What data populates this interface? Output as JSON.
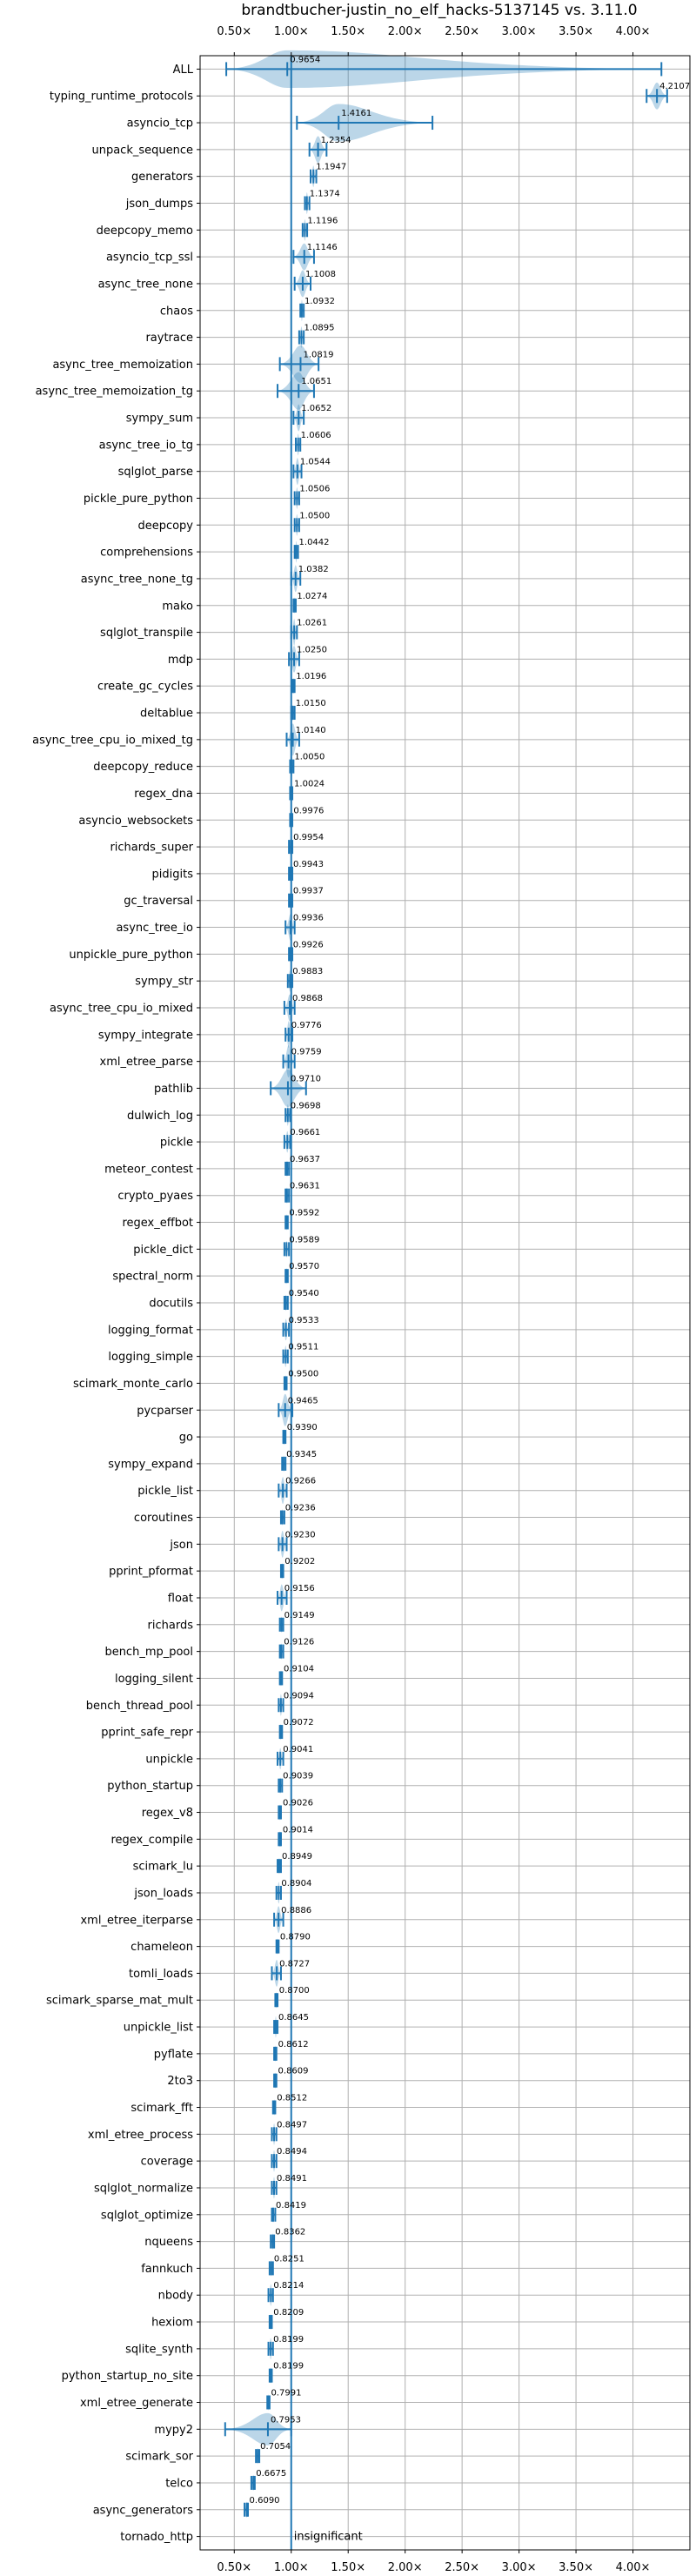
{
  "chart_data": {
    "type": "violin",
    "title": "brandtbucher-justin_no_elf_hacks-5137145 vs. 3.11.0",
    "x_ticks": [
      {
        "value": 0.5,
        "label": "0.50×"
      },
      {
        "value": 1.0,
        "label": "1.00×"
      },
      {
        "value": 1.5,
        "label": "1.50×"
      },
      {
        "value": 2.0,
        "label": "2.00×"
      },
      {
        "value": 2.5,
        "label": "2.50×"
      },
      {
        "value": 3.0,
        "label": "3.00×"
      },
      {
        "value": 3.5,
        "label": "3.50×"
      },
      {
        "value": 4.0,
        "label": "4.00×"
      }
    ],
    "xlim": [
      0.2,
      4.5
    ],
    "grid": true,
    "reference_line": 1.0,
    "benchmarks": [
      {
        "name": "ALL",
        "value": 0.9654,
        "label": "0.9654",
        "lo": 0.43,
        "hi": 4.25,
        "violin_w": 0.7
      },
      {
        "name": "typing_runtime_protocols",
        "value": 4.2107,
        "label": "4.2107",
        "lo": 4.12,
        "hi": 4.3,
        "violin_w": 0.5
      },
      {
        "name": "asyncio_tcp",
        "value": 1.4161,
        "label": "1.4161",
        "lo": 1.05,
        "hi": 2.24,
        "violin_w": 0.7
      },
      {
        "name": "unpack_sequence",
        "value": 1.2354,
        "label": "1.2354",
        "lo": 1.16,
        "hi": 1.31,
        "violin_w": 0.5
      },
      {
        "name": "generators",
        "value": 1.1947,
        "label": "1.1947",
        "lo": 1.17,
        "hi": 1.22,
        "violin_w": 0.4
      },
      {
        "name": "json_dumps",
        "value": 1.1374,
        "label": "1.1374",
        "lo": 1.12,
        "hi": 1.16,
        "violin_w": 0.4
      },
      {
        "name": "deepcopy_memo",
        "value": 1.1196,
        "label": "1.1196",
        "lo": 1.1,
        "hi": 1.14,
        "violin_w": 0.4
      },
      {
        "name": "asyncio_tcp_ssl",
        "value": 1.1146,
        "label": "1.1146",
        "lo": 1.02,
        "hi": 1.2,
        "violin_w": 0.5
      },
      {
        "name": "async_tree_none",
        "value": 1.1008,
        "label": "1.1008",
        "lo": 1.03,
        "hi": 1.17,
        "violin_w": 0.5
      },
      {
        "name": "chaos",
        "value": 1.0932,
        "label": "1.0932",
        "lo": 1.08,
        "hi": 1.11,
        "violin_w": 0.4
      },
      {
        "name": "raytrace",
        "value": 1.0895,
        "label": "1.0895",
        "lo": 1.07,
        "hi": 1.11,
        "violin_w": 0.4
      },
      {
        "name": "async_tree_memoization",
        "value": 1.0819,
        "label": "1.0819",
        "lo": 0.9,
        "hi": 1.24,
        "violin_w": 0.7
      },
      {
        "name": "async_tree_memoization_tg",
        "value": 1.0651,
        "label": "1.0651",
        "lo": 0.88,
        "hi": 1.2,
        "violin_w": 0.7
      },
      {
        "name": "sympy_sum",
        "value": 1.0652,
        "label": "1.0652",
        "lo": 1.02,
        "hi": 1.11,
        "violin_w": 0.5
      },
      {
        "name": "async_tree_io_tg",
        "value": 1.0606,
        "label": "1.0606",
        "lo": 1.04,
        "hi": 1.08,
        "violin_w": 0.4
      },
      {
        "name": "sqlglot_parse",
        "value": 1.0544,
        "label": "1.0544",
        "lo": 1.02,
        "hi": 1.09,
        "violin_w": 0.5
      },
      {
        "name": "pickle_pure_python",
        "value": 1.0506,
        "label": "1.0506",
        "lo": 1.03,
        "hi": 1.07,
        "violin_w": 0.4
      },
      {
        "name": "deepcopy",
        "value": 1.05,
        "label": "1.0500",
        "lo": 1.03,
        "hi": 1.07,
        "violin_w": 0.4
      },
      {
        "name": "comprehensions",
        "value": 1.0442,
        "label": "1.0442",
        "lo": 1.03,
        "hi": 1.06,
        "violin_w": 0.4
      },
      {
        "name": "async_tree_none_tg",
        "value": 1.0382,
        "label": "1.0382",
        "lo": 1.0,
        "hi": 1.08,
        "violin_w": 0.5
      },
      {
        "name": "mako",
        "value": 1.0274,
        "label": "1.0274",
        "lo": 1.02,
        "hi": 1.04,
        "violin_w": 0.3
      },
      {
        "name": "sqlglot_transpile",
        "value": 1.0261,
        "label": "1.0261",
        "lo": 1.0,
        "hi": 1.05,
        "violin_w": 0.5
      },
      {
        "name": "mdp",
        "value": 1.025,
        "label": "1.0250",
        "lo": 0.98,
        "hi": 1.07,
        "violin_w": 0.5
      },
      {
        "name": "create_gc_cycles",
        "value": 1.0196,
        "label": "1.0196",
        "lo": 1.01,
        "hi": 1.03,
        "violin_w": 0.3
      },
      {
        "name": "deltablue",
        "value": 1.015,
        "label": "1.0150",
        "lo": 1.0,
        "hi": 1.03,
        "violin_w": 0.3
      },
      {
        "name": "async_tree_cpu_io_mixed_tg",
        "value": 1.014,
        "label": "1.0140",
        "lo": 0.96,
        "hi": 1.07,
        "violin_w": 0.6
      },
      {
        "name": "deepcopy_reduce",
        "value": 1.005,
        "label": "1.0050",
        "lo": 0.99,
        "hi": 1.02,
        "violin_w": 0.4
      },
      {
        "name": "regex_dna",
        "value": 1.0024,
        "label": "1.0024",
        "lo": 0.99,
        "hi": 1.01,
        "violin_w": 0.3
      },
      {
        "name": "asyncio_websockets",
        "value": 0.9976,
        "label": "0.9976",
        "lo": 0.99,
        "hi": 1.01,
        "violin_w": 0.3
      },
      {
        "name": "richards_super",
        "value": 0.9954,
        "label": "0.9954",
        "lo": 0.98,
        "hi": 1.01,
        "violin_w": 0.3
      },
      {
        "name": "pidigits",
        "value": 0.9943,
        "label": "0.9943",
        "lo": 0.98,
        "hi": 1.01,
        "violin_w": 0.3
      },
      {
        "name": "gc_traversal",
        "value": 0.9937,
        "label": "0.9937",
        "lo": 0.98,
        "hi": 1.01,
        "violin_w": 0.3
      },
      {
        "name": "async_tree_io",
        "value": 0.9936,
        "label": "0.9936",
        "lo": 0.95,
        "hi": 1.03,
        "violin_w": 0.5
      },
      {
        "name": "unpickle_pure_python",
        "value": 0.9926,
        "label": "0.9926",
        "lo": 0.98,
        "hi": 1.01,
        "violin_w": 0.3
      },
      {
        "name": "sympy_str",
        "value": 0.9883,
        "label": "0.9883",
        "lo": 0.97,
        "hi": 1.01,
        "violin_w": 0.4
      },
      {
        "name": "async_tree_cpu_io_mixed",
        "value": 0.9868,
        "label": "0.9868",
        "lo": 0.94,
        "hi": 1.03,
        "violin_w": 0.5
      },
      {
        "name": "sympy_integrate",
        "value": 0.9776,
        "label": "0.9776",
        "lo": 0.95,
        "hi": 1.01,
        "violin_w": 0.5
      },
      {
        "name": "xml_etree_parse",
        "value": 0.9759,
        "label": "0.9759",
        "lo": 0.93,
        "hi": 1.03,
        "violin_w": 0.6
      },
      {
        "name": "pathlib",
        "value": 0.971,
        "label": "0.9710",
        "lo": 0.82,
        "hi": 1.13,
        "violin_w": 0.7
      },
      {
        "name": "dulwich_log",
        "value": 0.9698,
        "label": "0.9698",
        "lo": 0.95,
        "hi": 0.99,
        "violin_w": 0.4
      },
      {
        "name": "pickle",
        "value": 0.9661,
        "label": "0.9661",
        "lo": 0.94,
        "hi": 0.99,
        "violin_w": 0.4
      },
      {
        "name": "meteor_contest",
        "value": 0.9637,
        "label": "0.9637",
        "lo": 0.95,
        "hi": 0.98,
        "violin_w": 0.3
      },
      {
        "name": "crypto_pyaes",
        "value": 0.9631,
        "label": "0.9631",
        "lo": 0.95,
        "hi": 0.98,
        "violin_w": 0.3
      },
      {
        "name": "regex_effbot",
        "value": 0.9592,
        "label": "0.9592",
        "lo": 0.95,
        "hi": 0.97,
        "violin_w": 0.3
      },
      {
        "name": "pickle_dict",
        "value": 0.9589,
        "label": "0.9589",
        "lo": 0.94,
        "hi": 0.98,
        "violin_w": 0.3
      },
      {
        "name": "spectral_norm",
        "value": 0.957,
        "label": "0.9570",
        "lo": 0.95,
        "hi": 0.97,
        "violin_w": 0.3
      },
      {
        "name": "docutils",
        "value": 0.954,
        "label": "0.9540",
        "lo": 0.94,
        "hi": 0.97,
        "violin_w": 0.3
      },
      {
        "name": "logging_format",
        "value": 0.9533,
        "label": "0.9533",
        "lo": 0.93,
        "hi": 0.98,
        "violin_w": 0.4
      },
      {
        "name": "logging_simple",
        "value": 0.9511,
        "label": "0.9511",
        "lo": 0.93,
        "hi": 0.97,
        "violin_w": 0.4
      },
      {
        "name": "scimark_monte_carlo",
        "value": 0.95,
        "label": "0.9500",
        "lo": 0.94,
        "hi": 0.96,
        "violin_w": 0.3
      },
      {
        "name": "pycparser",
        "value": 0.9465,
        "label": "0.9465",
        "lo": 0.89,
        "hi": 1.01,
        "violin_w": 0.6
      },
      {
        "name": "go",
        "value": 0.939,
        "label": "0.9390",
        "lo": 0.93,
        "hi": 0.95,
        "violin_w": 0.3
      },
      {
        "name": "sympy_expand",
        "value": 0.9345,
        "label": "0.9345",
        "lo": 0.92,
        "hi": 0.95,
        "violin_w": 0.3
      },
      {
        "name": "pickle_list",
        "value": 0.9266,
        "label": "0.9266",
        "lo": 0.89,
        "hi": 0.96,
        "violin_w": 0.5
      },
      {
        "name": "coroutines",
        "value": 0.9236,
        "label": "0.9236",
        "lo": 0.91,
        "hi": 0.94,
        "violin_w": 0.3
      },
      {
        "name": "json",
        "value": 0.923,
        "label": "0.9230",
        "lo": 0.89,
        "hi": 0.96,
        "violin_w": 0.5
      },
      {
        "name": "pprint_pformat",
        "value": 0.9202,
        "label": "0.9202",
        "lo": 0.91,
        "hi": 0.93,
        "violin_w": 0.3
      },
      {
        "name": "float",
        "value": 0.9156,
        "label": "0.9156",
        "lo": 0.88,
        "hi": 0.96,
        "violin_w": 0.5
      },
      {
        "name": "richards",
        "value": 0.9149,
        "label": "0.9149",
        "lo": 0.9,
        "hi": 0.93,
        "violin_w": 0.3
      },
      {
        "name": "bench_mp_pool",
        "value": 0.9126,
        "label": "0.9126",
        "lo": 0.9,
        "hi": 0.93,
        "violin_w": 0.3
      },
      {
        "name": "logging_silent",
        "value": 0.9104,
        "label": "0.9104",
        "lo": 0.9,
        "hi": 0.92,
        "violin_w": 0.3
      },
      {
        "name": "bench_thread_pool",
        "value": 0.9094,
        "label": "0.9094",
        "lo": 0.89,
        "hi": 0.93,
        "violin_w": 0.4
      },
      {
        "name": "pprint_safe_repr",
        "value": 0.9072,
        "label": "0.9072",
        "lo": 0.9,
        "hi": 0.92,
        "violin_w": 0.3
      },
      {
        "name": "unpickle",
        "value": 0.9041,
        "label": "0.9041",
        "lo": 0.88,
        "hi": 0.93,
        "violin_w": 0.4
      },
      {
        "name": "python_startup",
        "value": 0.9039,
        "label": "0.9039",
        "lo": 0.89,
        "hi": 0.92,
        "violin_w": 0.3
      },
      {
        "name": "regex_v8",
        "value": 0.9026,
        "label": "0.9026",
        "lo": 0.89,
        "hi": 0.91,
        "violin_w": 0.3
      },
      {
        "name": "regex_compile",
        "value": 0.9014,
        "label": "0.9014",
        "lo": 0.89,
        "hi": 0.91,
        "violin_w": 0.3
      },
      {
        "name": "scimark_lu",
        "value": 0.8949,
        "label": "0.8949",
        "lo": 0.88,
        "hi": 0.91,
        "violin_w": 0.3
      },
      {
        "name": "json_loads",
        "value": 0.8904,
        "label": "0.8904",
        "lo": 0.87,
        "hi": 0.91,
        "violin_w": 0.4
      },
      {
        "name": "xml_etree_iterparse",
        "value": 0.8886,
        "label": "0.8886",
        "lo": 0.85,
        "hi": 0.93,
        "violin_w": 0.5
      },
      {
        "name": "chameleon",
        "value": 0.879,
        "label": "0.8790",
        "lo": 0.87,
        "hi": 0.89,
        "violin_w": 0.3
      },
      {
        "name": "tomli_loads",
        "value": 0.8727,
        "label": "0.8727",
        "lo": 0.83,
        "hi": 0.91,
        "violin_w": 0.5
      },
      {
        "name": "scimark_sparse_mat_mult",
        "value": 0.87,
        "label": "0.8700",
        "lo": 0.86,
        "hi": 0.88,
        "violin_w": 0.3
      },
      {
        "name": "unpickle_list",
        "value": 0.8645,
        "label": "0.8645",
        "lo": 0.85,
        "hi": 0.88,
        "violin_w": 0.4
      },
      {
        "name": "pyflate",
        "value": 0.8612,
        "label": "0.8612",
        "lo": 0.85,
        "hi": 0.87,
        "violin_w": 0.3
      },
      {
        "name": "2to3",
        "value": 0.8609,
        "label": "0.8609",
        "lo": 0.85,
        "hi": 0.87,
        "violin_w": 0.3
      },
      {
        "name": "scimark_fft",
        "value": 0.8512,
        "label": "0.8512",
        "lo": 0.84,
        "hi": 0.86,
        "violin_w": 0.3
      },
      {
        "name": "xml_etree_process",
        "value": 0.8497,
        "label": "0.8497",
        "lo": 0.83,
        "hi": 0.87,
        "violin_w": 0.4
      },
      {
        "name": "coverage",
        "value": 0.8494,
        "label": "0.8494",
        "lo": 0.83,
        "hi": 0.87,
        "violin_w": 0.4
      },
      {
        "name": "sqlglot_normalize",
        "value": 0.8491,
        "label": "0.8491",
        "lo": 0.83,
        "hi": 0.87,
        "violin_w": 0.4
      },
      {
        "name": "sqlglot_optimize",
        "value": 0.8419,
        "label": "0.8419",
        "lo": 0.83,
        "hi": 0.86,
        "violin_w": 0.3
      },
      {
        "name": "nqueens",
        "value": 0.8362,
        "label": "0.8362",
        "lo": 0.82,
        "hi": 0.85,
        "violin_w": 0.3
      },
      {
        "name": "fannkuch",
        "value": 0.8251,
        "label": "0.8251",
        "lo": 0.81,
        "hi": 0.84,
        "violin_w": 0.3
      },
      {
        "name": "nbody",
        "value": 0.8214,
        "label": "0.8214",
        "lo": 0.8,
        "hi": 0.84,
        "violin_w": 0.4
      },
      {
        "name": "hexiom",
        "value": 0.8209,
        "label": "0.8209",
        "lo": 0.81,
        "hi": 0.83,
        "violin_w": 0.3
      },
      {
        "name": "sqlite_synth",
        "value": 0.8199,
        "label": "0.8199",
        "lo": 0.8,
        "hi": 0.84,
        "violin_w": 0.4
      },
      {
        "name": "python_startup_no_site",
        "value": 0.8199,
        "label": "0.8199",
        "lo": 0.81,
        "hi": 0.83,
        "violin_w": 0.3
      },
      {
        "name": "xml_etree_generate",
        "value": 0.7991,
        "label": "0.7991",
        "lo": 0.79,
        "hi": 0.81,
        "violin_w": 0.3
      },
      {
        "name": "mypy2",
        "value": 0.7953,
        "label": "0.7953",
        "lo": 0.42,
        "hi": 1.0,
        "violin_w": 0.6
      },
      {
        "name": "scimark_sor",
        "value": 0.7054,
        "label": "0.7054",
        "lo": 0.69,
        "hi": 0.72,
        "violin_w": 0.3
      },
      {
        "name": "telco",
        "value": 0.6675,
        "label": "0.6675",
        "lo": 0.65,
        "hi": 0.68,
        "violin_w": 0.3
      },
      {
        "name": "async_generators",
        "value": 0.609,
        "label": "0.6090",
        "lo": 0.59,
        "hi": 0.62,
        "violin_w": 0.3
      },
      {
        "name": "tornado_http",
        "value": null,
        "label": "insignificant",
        "lo": null,
        "hi": null,
        "violin_w": 0
      }
    ]
  },
  "colors": {
    "series": "#1f77b4",
    "grid": "#b0b0b0",
    "text": "#000000"
  }
}
